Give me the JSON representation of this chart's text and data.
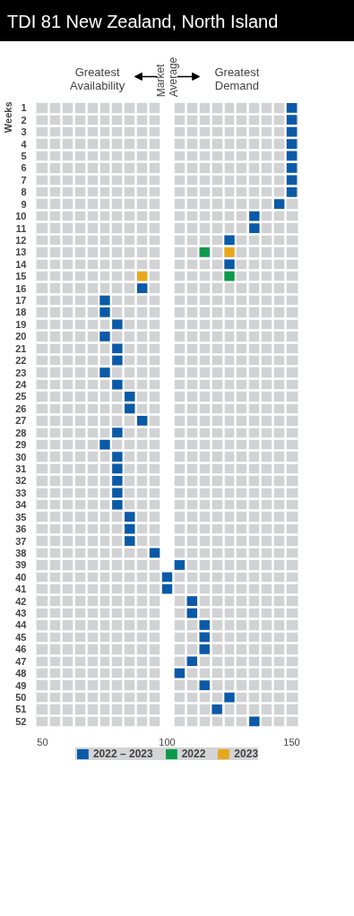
{
  "chart_data": {
    "type": "scatter",
    "title": "TDI 81  New Zealand, North Island",
    "ylabel": "Weeks",
    "orientation": "horizontal",
    "marker": "square",
    "grid": true,
    "legend": "bottom",
    "categories": [
      "1",
      "2",
      "3",
      "4",
      "5",
      "6",
      "7",
      "8",
      "9",
      "10",
      "11",
      "12",
      "13",
      "14",
      "15",
      "16",
      "17",
      "18",
      "19",
      "20",
      "21",
      "22",
      "23",
      "24",
      "25",
      "26",
      "27",
      "28",
      "29",
      "30",
      "31",
      "32",
      "33",
      "34",
      "35",
      "36",
      "37",
      "38",
      "39",
      "40",
      "41",
      "42",
      "43",
      "44",
      "45",
      "46",
      "47",
      "48",
      "49",
      "50",
      "51",
      "52"
    ],
    "xlim": [
      47.5,
      152.5
    ],
    "xticks": [
      50,
      100,
      150
    ],
    "ref_lines": [
      {
        "axis": "x",
        "value": 100,
        "label": "Market Average",
        "color": "#ffffff"
      }
    ],
    "bands": [
      {
        "axis": "x",
        "from": 47.5,
        "to": 152.5,
        "color": "#d1d2d4"
      }
    ],
    "annotations": [
      "Greatest Availability",
      "Greatest Demand"
    ],
    "series": [
      {
        "name": "2022 – 2023",
        "color": "#0a5aa8",
        "values": [
          150,
          150,
          150,
          150,
          150,
          150,
          150,
          150,
          145,
          135,
          135,
          125,
          null,
          125,
          null,
          90,
          75,
          75,
          80,
          75,
          80,
          80,
          75,
          80,
          85,
          85,
          90,
          80,
          75,
          80,
          80,
          80,
          80,
          80,
          85,
          85,
          85,
          95,
          105,
          100,
          100,
          110,
          110,
          115,
          115,
          115,
          110,
          105,
          115,
          125,
          120,
          135
        ]
      },
      {
        "name": "2022",
        "color": "#0a9a4a",
        "values": [
          null,
          null,
          null,
          null,
          null,
          null,
          null,
          null,
          null,
          null,
          null,
          null,
          115,
          null,
          125,
          null,
          null,
          null,
          null,
          null,
          null,
          null,
          null,
          null,
          null,
          null,
          null,
          null,
          null,
          null,
          null,
          null,
          null,
          null,
          null,
          null,
          null,
          null,
          null,
          null,
          null,
          null,
          null,
          null,
          null,
          null,
          null,
          null,
          null,
          null,
          null,
          null
        ]
      },
      {
        "name": "2023",
        "color": "#e8a81c",
        "values": [
          null,
          null,
          null,
          null,
          null,
          null,
          null,
          null,
          null,
          null,
          null,
          null,
          125,
          null,
          90,
          null,
          null,
          null,
          null,
          null,
          null,
          null,
          null,
          null,
          null,
          null,
          null,
          null,
          null,
          null,
          null,
          null,
          null,
          null,
          null,
          null,
          null,
          null,
          null,
          null,
          null,
          null,
          null,
          null,
          null,
          null,
          null,
          null,
          null,
          null,
          null,
          null
        ]
      }
    ]
  }
}
